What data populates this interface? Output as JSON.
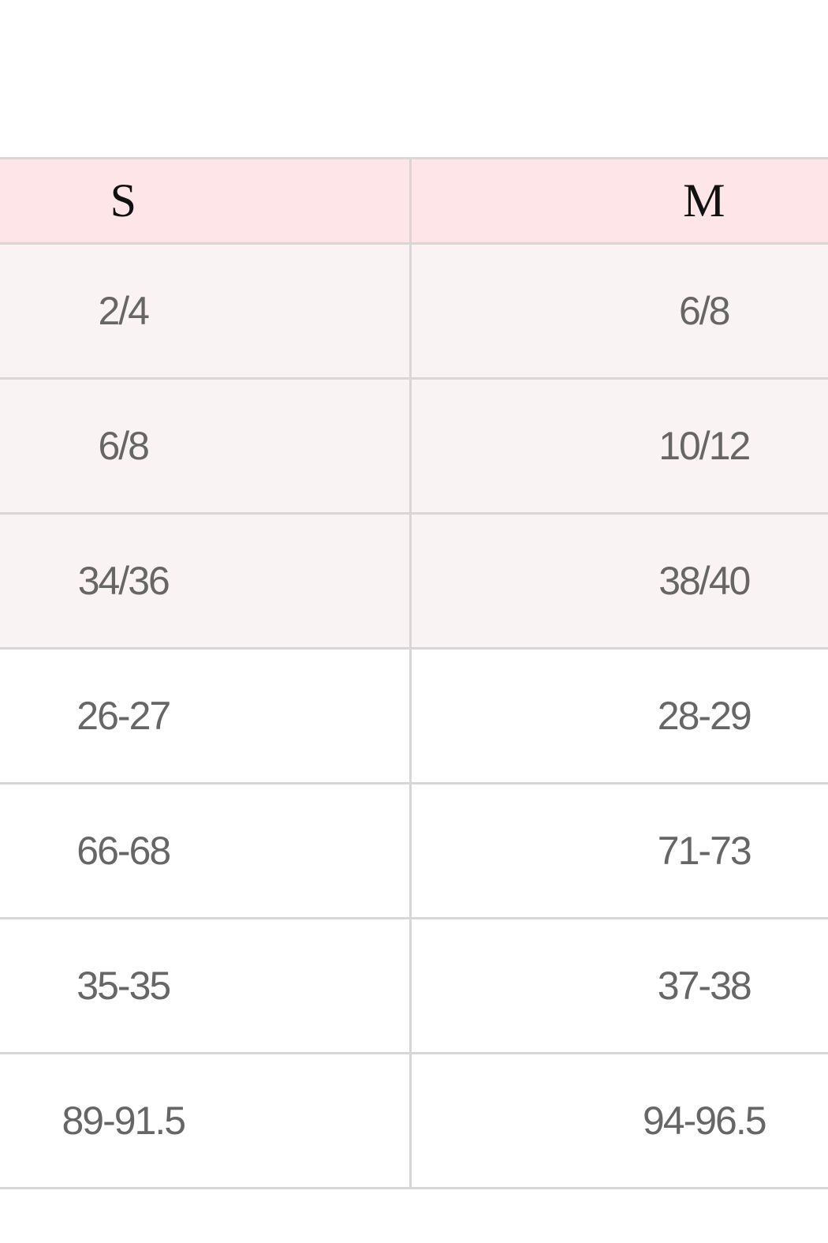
{
  "size_chart": {
    "header": [
      "S",
      "M"
    ],
    "rows": [
      [
        "2/4",
        "6/8"
      ],
      [
        "6/8",
        "10/12"
      ],
      [
        "34/36",
        "38/40"
      ],
      [
        "26-27",
        "28-29"
      ],
      [
        "66-68",
        "71-73"
      ],
      [
        "35-35",
        "37-38"
      ],
      [
        "89-91.5",
        "94-96.5"
      ]
    ],
    "colors": {
      "header_bg": "#fde5e8",
      "tinted_row_bg": "#faf3f3",
      "border": "#d9d6d7"
    }
  }
}
